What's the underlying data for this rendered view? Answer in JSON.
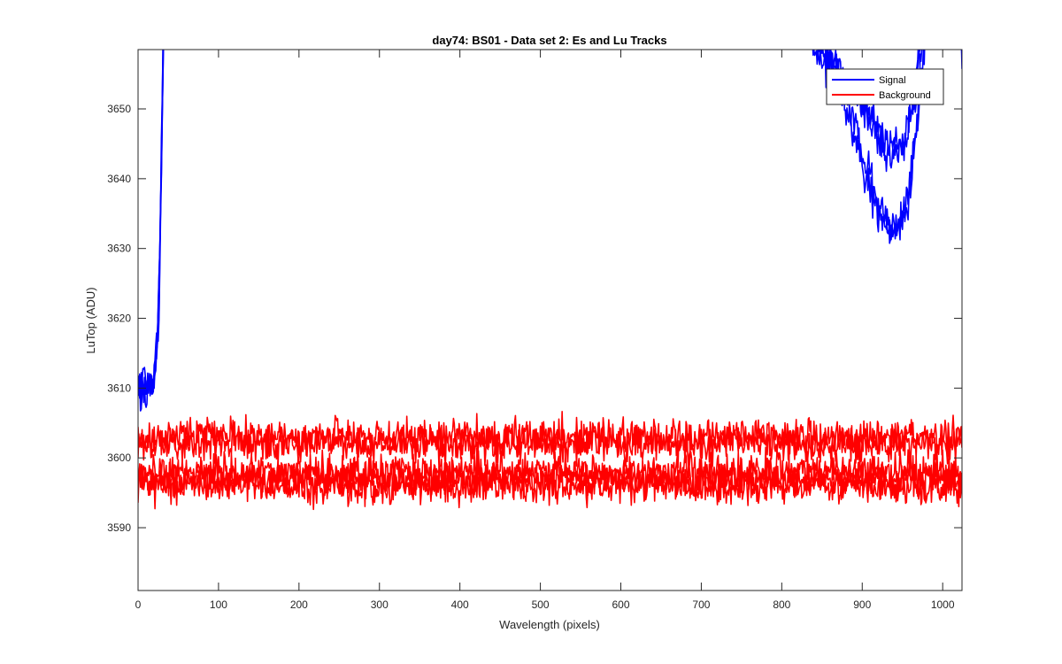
{
  "chart_data": {
    "type": "line",
    "title": "day74: BS01 - Data set 2: Es and Lu Tracks",
    "xlabel": "Wavelength (pixels)",
    "ylabel": "LuTop (ADU)",
    "xlim": [
      0,
      1024
    ],
    "ylim": [
      3581,
      3658.5
    ],
    "xticks": [
      0,
      100,
      200,
      300,
      400,
      500,
      600,
      700,
      800,
      900,
      1000
    ],
    "yticks": [
      3590,
      3600,
      3610,
      3620,
      3630,
      3640,
      3650
    ],
    "grid": false,
    "legend_position": "top-right",
    "series": [
      {
        "name": "Signal",
        "color": "#0000ff",
        "tracks": [
          {
            "x": [
              0,
              5,
              10,
              15,
              20,
              24,
              27,
              30,
              33,
              800,
              820,
              840,
              860,
              880,
              900,
              920,
              940,
              955,
              970,
              985,
              1020,
              1024
            ],
            "y": [
              3610,
              3611,
              3610,
              3611,
              3612,
              3617,
              3630,
              3650,
              3670,
              3670,
              3665,
              3661,
              3657,
              3652,
              3644,
              3637,
              3633,
              3636,
              3650,
              3670,
              3670,
              3657
            ],
            "noise": 1.4
          },
          {
            "x": [
              0,
              5,
              10,
              15,
              20,
              24,
              27,
              30,
              33,
              800,
              820,
              840,
              860,
              880,
              900,
              920,
              940,
              955,
              968,
              980,
              1020,
              1024
            ],
            "y": [
              3609,
              3610,
              3609,
              3610,
              3611,
              3616,
              3628,
              3648,
              3670,
              3670,
              3664,
              3659,
              3655,
              3650,
              3641,
              3635,
              3632,
              3634,
              3648,
              3670,
              3670,
              3658
            ],
            "noise": 1.4
          },
          {
            "x": [
              0,
              10,
              20,
              26,
              30,
              33,
              800,
              830,
              860,
              890,
              910,
              930,
              950,
              965,
              980,
              1020,
              1024
            ],
            "y": [
              3610,
              3610,
              3612,
              3622,
              3650,
              3670,
              3670,
              3663,
              3658,
              3653,
              3649,
              3645,
              3645,
              3650,
              3670,
              3670,
              3657
            ],
            "noise": 1.2
          },
          {
            "x": [
              0,
              10,
              20,
              26,
              30,
              33,
              800,
              830,
              860,
              890,
              910,
              930,
              950,
              965,
              980,
              1020,
              1024
            ],
            "y": [
              3609,
              3610,
              3611,
              3621,
              3648,
              3670,
              3670,
              3662,
              3657,
              3652,
              3648,
              3643,
              3644,
              3652,
              3670,
              3670,
              3658
            ],
            "noise": 1.2
          }
        ]
      },
      {
        "name": "Background",
        "color": "#ff0000",
        "tracks": [
          {
            "x": [
              0,
              1024
            ],
            "y": [
              3603,
              3603
            ],
            "noise": 1.3
          },
          {
            "x": [
              0,
              1024
            ],
            "y": [
              3602,
              3602
            ],
            "noise": 1.3
          },
          {
            "x": [
              0,
              1024
            ],
            "y": [
              3598,
              3598
            ],
            "noise": 1.3
          },
          {
            "x": [
              0,
              1024
            ],
            "y": [
              3596,
              3596
            ],
            "noise": 1.3
          },
          {
            "x": [
              0,
              1024
            ],
            "y": [
              3597,
              3597
            ],
            "noise": 1.3
          }
        ]
      }
    ]
  }
}
